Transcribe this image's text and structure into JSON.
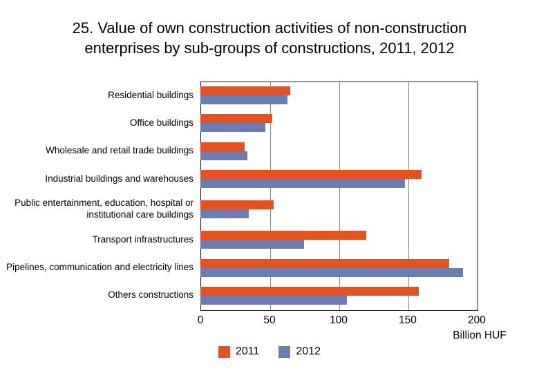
{
  "title_lines": [
    "25. Value of own construction activities of non-construction",
    "enterprises by  sub-groups of constructions, 2011, 2012"
  ],
  "chart_data": {
    "type": "bar",
    "orientation": "horizontal",
    "title": "25. Value of own construction activities of non-construction enterprises by sub-groups of constructions, 2011, 2012",
    "categories": [
      "Residential buildings",
      "Office buildings",
      "Wholesale and retail trade buildings",
      "Industrial buildings and warehouses",
      "Public entertainment, education, hospital or institutional care buildings",
      "Transport infrastructures",
      "Pipelines, communication and electricity lines",
      "Others constructions"
    ],
    "series": [
      {
        "name": "2011",
        "color": "#E6511F",
        "values": [
          65,
          52,
          32,
          160,
          53,
          120,
          180,
          158
        ]
      },
      {
        "name": "2012",
        "color": "#6B7DB3",
        "values": [
          63,
          47,
          34,
          148,
          35,
          75,
          190,
          106
        ]
      }
    ],
    "xlabel": "Billion HUF",
    "xlim": [
      0,
      200
    ],
    "xticks": [
      0,
      50,
      100,
      150,
      200
    ],
    "grid": true,
    "legend_position": "bottom",
    "frame_color": "#1a1a1a",
    "gridline_color": "#8a8a8a"
  }
}
